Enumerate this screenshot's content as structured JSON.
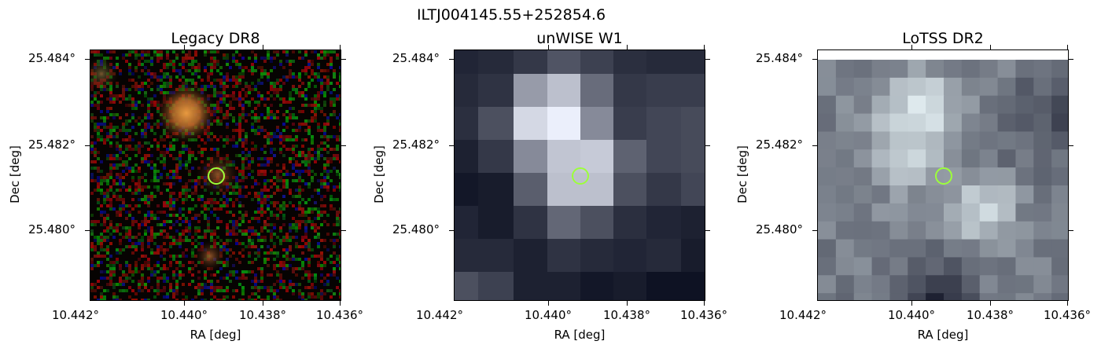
{
  "figure": {
    "title": "ILTJ004145.55+252854.6"
  },
  "axes": {
    "xlabel": "RA [deg]",
    "ylabel": "Dec [deg]",
    "xticks": [
      "10.442°",
      "10.440°",
      "10.438°",
      "10.436°"
    ],
    "yticks": [
      "25.484°",
      "25.482°",
      "25.480°"
    ]
  },
  "panels": [
    {
      "title": "Legacy DR8"
    },
    {
      "title": "unWISE W1"
    },
    {
      "title": "LoTSS DR2"
    }
  ],
  "colors": {
    "marker": "#9cff3a"
  }
}
